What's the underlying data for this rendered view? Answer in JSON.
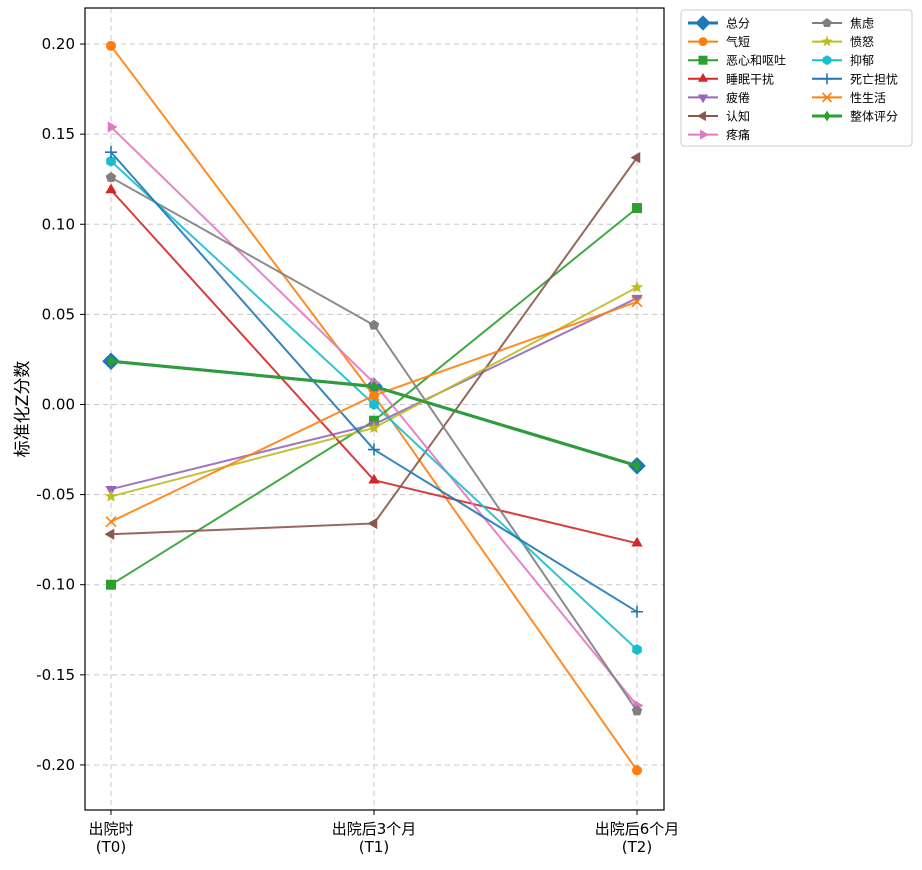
{
  "chart_data": {
    "type": "line",
    "title": "",
    "xlabel": "",
    "ylabel": "标准化Z分数",
    "categories": [
      [
        "出院时",
        "(T0)"
      ],
      [
        "出院后3个月",
        "(T1)"
      ],
      [
        "出院后6个月",
        "(T2)"
      ]
    ],
    "ylim": [
      -0.225,
      0.22
    ],
    "yticks": [
      -0.2,
      -0.15,
      -0.1,
      -0.05,
      0.0,
      0.05,
      0.1,
      0.15,
      0.2
    ],
    "ytick_labels": [
      "-0.20",
      "-0.15",
      "-0.10",
      "-0.05",
      "0.00",
      "0.05",
      "0.10",
      "0.15",
      "0.20"
    ],
    "grid": true,
    "legend_position": "outside-top-right",
    "legend_columns": 2,
    "series": [
      {
        "name": "总分",
        "values": [
          0.024,
          0.01,
          -0.034
        ],
        "color": "#1f77b4",
        "marker": "diamond",
        "bold": true
      },
      {
        "name": "气短",
        "values": [
          0.199,
          0.005,
          -0.203
        ],
        "color": "#ff7f0e",
        "marker": "circle"
      },
      {
        "name": "恶心和呕吐",
        "values": [
          -0.1,
          -0.009,
          0.109
        ],
        "color": "#2ca02c",
        "marker": "square"
      },
      {
        "name": "睡眠干扰",
        "values": [
          0.119,
          -0.042,
          -0.077
        ],
        "color": "#d62728",
        "marker": "triangle-up"
      },
      {
        "name": "疲倦",
        "values": [
          -0.047,
          -0.011,
          0.059
        ],
        "color": "#9467bd",
        "marker": "triangle-down"
      },
      {
        "name": "认知",
        "values": [
          -0.072,
          -0.066,
          0.137
        ],
        "color": "#8c564b",
        "marker": "triangle-left"
      },
      {
        "name": "疼痛",
        "values": [
          0.154,
          0.012,
          -0.167
        ],
        "color": "#e377c2",
        "marker": "triangle-right"
      },
      {
        "name": "焦虑",
        "values": [
          0.126,
          0.044,
          -0.17
        ],
        "color": "#7f7f7f",
        "marker": "pentagon"
      },
      {
        "name": "愤怒",
        "values": [
          -0.051,
          -0.013,
          0.065
        ],
        "color": "#bcbd22",
        "marker": "star"
      },
      {
        "name": "抑郁",
        "values": [
          0.135,
          0.0,
          -0.136
        ],
        "color": "#17becf",
        "marker": "hexagon"
      },
      {
        "name": "死亡担忧",
        "values": [
          0.14,
          -0.025,
          -0.115
        ],
        "color": "#1f77b4",
        "marker": "plus"
      },
      {
        "name": "性生活",
        "values": [
          -0.065,
          0.005,
          0.057
        ],
        "color": "#ff7f0e",
        "marker": "x"
      },
      {
        "name": "整体评分",
        "values": [
          0.024,
          0.01,
          -0.034
        ],
        "color": "#2ca02c",
        "marker": "thin-diamond",
        "bold": true
      }
    ]
  }
}
